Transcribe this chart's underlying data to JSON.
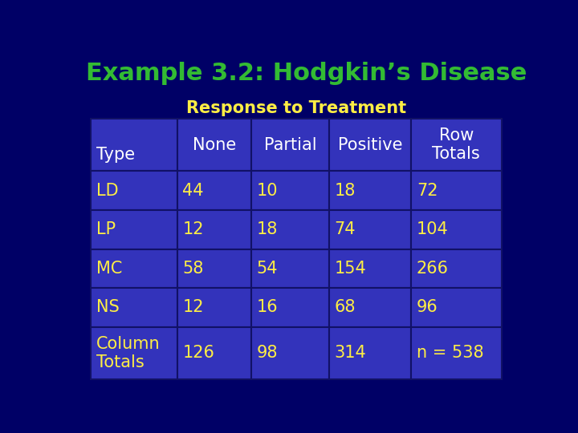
{
  "title": "Example 3.2: Hodgkin’s Disease",
  "subtitle": "Response to Treatment",
  "title_color": "#33bb33",
  "subtitle_color": "#ffee44",
  "background_color": "#000066",
  "table_bg_color": "#3333bb",
  "table_border_color": "#111166",
  "cell_text_color": "#ffee44",
  "header_text_color": "#ffffff",
  "col_headers": [
    "Type",
    "None",
    "Partial",
    "Positive",
    "Row\nTotals"
  ],
  "row_labels": [
    "LD",
    "LP",
    "MC",
    "NS",
    "Column\nTotals"
  ],
  "data": [
    [
      "44",
      "10",
      "18",
      "72"
    ],
    [
      "12",
      "18",
      "74",
      "104"
    ],
    [
      "58",
      "54",
      "154",
      "266"
    ],
    [
      "12",
      "16",
      "68",
      "96"
    ],
    [
      "126",
      "98",
      "314",
      "n = 538"
    ]
  ],
  "title_fontsize": 22,
  "subtitle_fontsize": 15,
  "table_fontsize": 15
}
